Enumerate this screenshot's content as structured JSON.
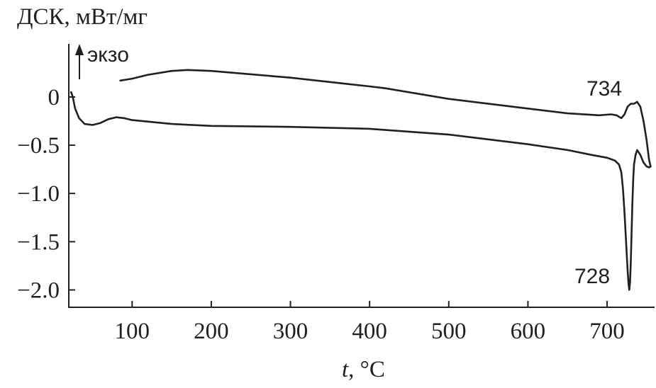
{
  "chart_data": {
    "type": "line",
    "title": "",
    "ylabel": "ДСК, мВт/мг",
    "xlabel": "t, °C",
    "xlabel_var": "t",
    "xlabel_unit": ", °C",
    "direction_label": "экзо",
    "xlim": [
      20,
      760
    ],
    "ylim": [
      -2.18,
      0.55
    ],
    "x_ticks": [
      100,
      200,
      300,
      400,
      500,
      600,
      700
    ],
    "x_tick_labels": [
      "100",
      "200",
      "300",
      "400",
      "500",
      "600",
      "700"
    ],
    "y_ticks": [
      0,
      -0.5,
      -1.0,
      -1.5,
      -2.0
    ],
    "y_tick_labels": [
      "0",
      "−0.5",
      "−1.0",
      "−1.5",
      "−2.0"
    ],
    "grid": false,
    "annotations": [
      {
        "text": "734",
        "x": 734,
        "y": -0.07
      },
      {
        "text": "728",
        "x": 728,
        "y": -2.0
      }
    ],
    "series": [
      {
        "x": [
          23,
          25,
          28,
          33,
          40,
          50,
          60,
          70,
          80,
          90,
          100,
          150,
          200,
          300,
          400,
          500,
          600,
          650,
          680,
          700,
          710,
          715,
          718,
          720,
          722,
          724,
          726,
          727,
          728,
          729,
          730,
          731,
          732,
          733,
          734,
          736,
          738,
          742,
          746,
          750,
          753,
          755
        ],
        "y": [
          0.05,
          0.0,
          -0.12,
          -0.22,
          -0.28,
          -0.29,
          -0.27,
          -0.23,
          -0.21,
          -0.22,
          -0.24,
          -0.28,
          -0.3,
          -0.31,
          -0.33,
          -0.39,
          -0.49,
          -0.55,
          -0.6,
          -0.63,
          -0.66,
          -0.7,
          -0.78,
          -0.95,
          -1.2,
          -1.5,
          -1.8,
          -1.93,
          -2.0,
          -1.92,
          -1.7,
          -1.4,
          -1.1,
          -0.85,
          -0.7,
          -0.6,
          -0.55,
          -0.6,
          -0.68,
          -0.72,
          -0.73,
          -0.72
        ]
      },
      {
        "x": [
          85,
          100,
          120,
          150,
          170,
          200,
          300,
          400,
          420,
          500,
          600,
          650,
          690,
          705,
          712,
          718,
          722,
          726,
          730,
          734,
          738,
          742,
          746,
          750,
          753,
          755
        ],
        "y": [
          0.17,
          0.19,
          0.23,
          0.27,
          0.28,
          0.27,
          0.2,
          0.11,
          0.09,
          -0.02,
          -0.12,
          -0.17,
          -0.19,
          -0.18,
          -0.19,
          -0.22,
          -0.18,
          -0.1,
          -0.07,
          -0.07,
          -0.05,
          -0.1,
          -0.25,
          -0.45,
          -0.65,
          -0.72
        ]
      }
    ]
  }
}
